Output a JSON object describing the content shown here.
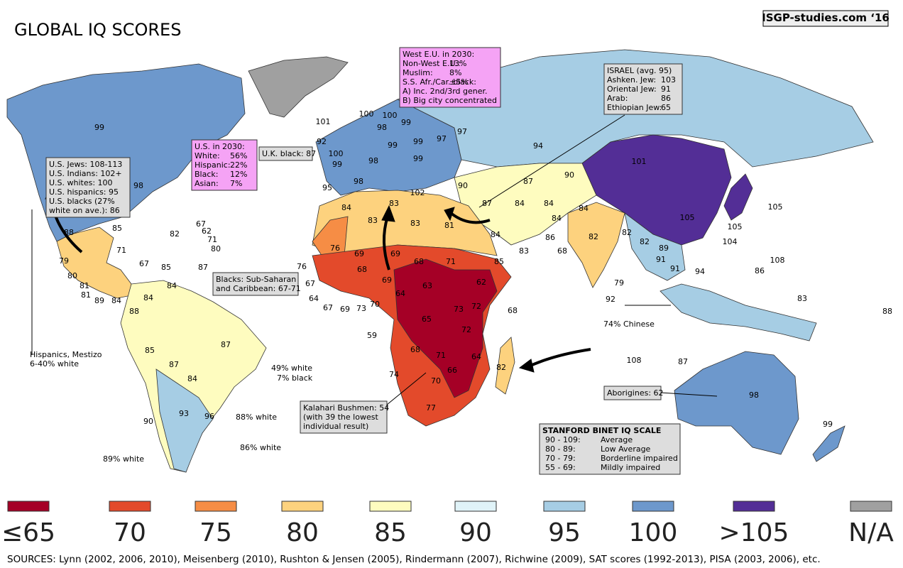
{
  "header": {
    "title": "GLOBAL IQ SCORES",
    "credit": "ISGP-studies.com ‘16"
  },
  "map_labels": [
    "99",
    "98",
    "101",
    "100",
    "100",
    "99",
    "98",
    "92",
    "100",
    "99",
    "99",
    "99",
    "97",
    "97",
    "98",
    "99",
    "94",
    "101",
    "105",
    "105",
    "104",
    "108",
    "105",
    "98",
    "95",
    "102",
    "90",
    "87",
    "90",
    "87",
    "84",
    "84",
    "84",
    "83",
    "83",
    "83",
    "81",
    "84",
    "84",
    "84",
    "86",
    "68",
    "82",
    "82",
    "82",
    "89",
    "91",
    "91",
    "94",
    "86",
    "83",
    "85",
    "76",
    "69",
    "69",
    "68",
    "71",
    "68",
    "69",
    "63",
    "62",
    "64",
    "65",
    "72",
    "73",
    "72",
    "68",
    "71",
    "64",
    "66",
    "74",
    "70",
    "77",
    "82",
    "79",
    "92",
    "83",
    "88",
    "108",
    "87",
    "98",
    "99",
    "88",
    "85",
    "82",
    "71",
    "67",
    "79",
    "80",
    "81",
    "81",
    "89",
    "84",
    "85",
    "88",
    "84",
    "84",
    "67",
    "62",
    "71",
    "80",
    "87",
    "89",
    "85",
    "87",
    "84",
    "87",
    "93",
    "96",
    "90",
    "76",
    "67",
    "64",
    "67",
    "69",
    "73",
    "70",
    "59",
    "68"
  ],
  "notes": [
    "Hispanics, Mestizo",
    "6-40% white",
    "74% Chinese",
    "49% white",
    "7% black",
    "88% white",
    "86% white",
    "89% white"
  ],
  "boxes": [
    {
      "lines": [
        "West E.U. in 2030:",
        [
          "Non-West E.U.:",
          "13%"
        ],
        [
          "Muslim:",
          "8%"
        ],
        [
          "S.S. Afr./Car. black:",
          "±5%"
        ],
        "A) Inc. 2nd/3rd gener.",
        "B) Big city concentrated"
      ]
    },
    {
      "lines": [
        "ISRAEL (avg. 95)",
        [
          "Ashken. Jew:",
          "103"
        ],
        [
          "Oriental Jew:",
          "91"
        ],
        [
          "Arab:",
          "86"
        ],
        [
          "Ethiopian Jew:",
          "65"
        ]
      ]
    },
    {
      "lines": [
        "U.S. in 2030:",
        [
          "White:",
          "56%"
        ],
        [
          "Hispanic:",
          "22%"
        ],
        [
          "Black:",
          "12%"
        ],
        [
          "Asian:",
          "7%"
        ]
      ]
    },
    {
      "lines": [
        "U.S. Jews: 108-113",
        "U.S. Indians: 102+",
        "U.S. whites:   100",
        "U.S. hispanics: 95",
        "U.S. blacks (27%",
        "white on ave.): 86"
      ]
    },
    {
      "lines": [
        "U.K. black: 87"
      ]
    },
    {
      "lines": [
        "Blacks: Sub-Saharan",
        "and Caribbean: 67-71"
      ]
    },
    {
      "lines": [
        "Aborigines: 62"
      ]
    },
    {
      "lines": [
        "Kalahari Bushmen: 54",
        "(with 39 the lowest",
        "individual result)"
      ]
    },
    {
      "lines": [
        "STANFORD BINET IQ SCALE",
        [
          "90 - 109:",
          "Average"
        ],
        [
          "80  - 89:",
          "Low Average"
        ],
        [
          "70 - 79:",
          "Borderline impaired"
        ],
        [
          "55 - 69:",
          "Mildly impaired"
        ]
      ]
    }
  ],
  "legend": [
    {
      "label": "≤65",
      "color": "#a50026"
    },
    {
      "label": "70",
      "color": "#e34a2b"
    },
    {
      "label": "75",
      "color": "#f68d45"
    },
    {
      "label": "80",
      "color": "#fdd27e"
    },
    {
      "label": "85",
      "color": "#fefcbf"
    },
    {
      "label": "90",
      "color": "#e0f3f8"
    },
    {
      "label": "95",
      "color": "#a6cde4"
    },
    {
      "label": "100",
      "color": "#6d98cc"
    },
    {
      "label": ">105",
      "color": "#532e96"
    },
    {
      "label": "N/A",
      "color": "#a0a0a0"
    }
  ],
  "sources": "SOURCES: Lynn (2002, 2006, 2010), Meisenberg (2010), Rushton & Jensen (2005), Rindermann (2007), Richwine (2009), SAT scores (1992-2013), PISA (2003, 2006), etc."
}
